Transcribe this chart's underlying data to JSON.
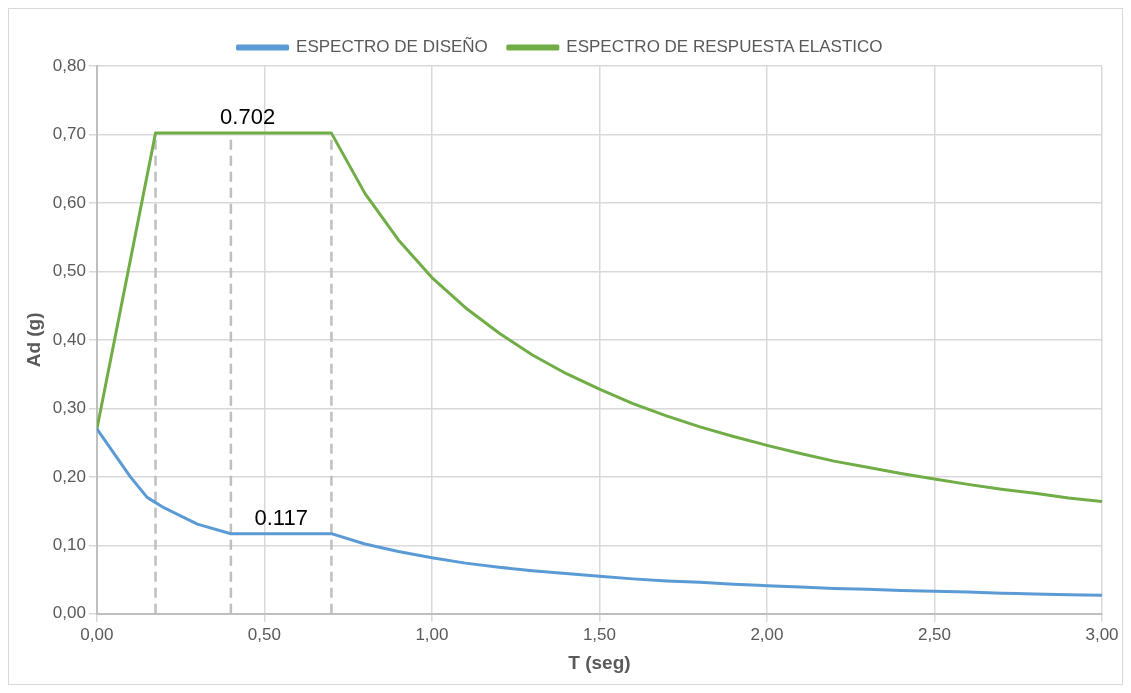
{
  "chart_data": {
    "type": "line",
    "xlabel": "T (seg)",
    "ylabel": "Ad (g)",
    "series": [
      {
        "name": "ESPECTRO DE DISEÑO",
        "color": "#5b9bd5",
        "x": [
          0,
          0.1,
          0.15,
          0.2,
          0.3,
          0.4,
          0.7,
          0.8,
          0.9,
          1.0,
          1.1,
          1.2,
          1.3,
          1.4,
          1.5,
          1.6,
          1.7,
          1.8,
          1.9,
          2.0,
          2.1,
          2.2,
          2.3,
          2.4,
          2.5,
          2.6,
          2.7,
          2.8,
          2.9,
          3.0
        ],
        "values": [
          0.27,
          0.2,
          0.17,
          0.155,
          0.131,
          0.117,
          0.117,
          0.102,
          0.091,
          0.082,
          0.074,
          0.068,
          0.063,
          0.059,
          0.055,
          0.051,
          0.048,
          0.046,
          0.043,
          0.041,
          0.039,
          0.037,
          0.036,
          0.034,
          0.033,
          0.032,
          0.03,
          0.029,
          0.028,
          0.027
        ]
      },
      {
        "name": "ESPECTRO DE RESPUESTA ELASTICO",
        "color": "#70ad47",
        "x": [
          0,
          0.175,
          0.7,
          0.8,
          0.9,
          1.0,
          1.1,
          1.2,
          1.3,
          1.4,
          1.5,
          1.6,
          1.7,
          1.8,
          1.9,
          2.0,
          2.1,
          2.2,
          2.3,
          2.4,
          2.5,
          2.6,
          2.7,
          2.8,
          2.9,
          3.0
        ],
        "values": [
          0.27,
          0.702,
          0.702,
          0.614,
          0.546,
          0.491,
          0.447,
          0.41,
          0.378,
          0.351,
          0.328,
          0.307,
          0.289,
          0.273,
          0.259,
          0.246,
          0.234,
          0.223,
          0.214,
          0.205,
          0.197,
          0.189,
          0.182,
          0.176,
          0.169,
          0.164
        ]
      }
    ],
    "annotations": [
      {
        "text": "0.702",
        "x": 0.45,
        "y": 0.702
      },
      {
        "text": "0.117",
        "x": 0.55,
        "y": 0.117
      }
    ],
    "ref_lines": [
      {
        "axis": "x",
        "value": 0.175,
        "color": "#bfbfbf",
        "line_style": "dashed"
      },
      {
        "axis": "x",
        "value": 0.4,
        "color": "#bfbfbf",
        "line_style": "dashed"
      },
      {
        "axis": "x",
        "value": 0.7,
        "color": "#bfbfbf",
        "line_style": "dashed"
      }
    ],
    "xlim": [
      0,
      3
    ],
    "xticks": [
      {
        "value": 0,
        "label": "0,00"
      },
      {
        "value": 0.5,
        "label": "0,50"
      },
      {
        "value": 1,
        "label": "1,00"
      },
      {
        "value": 1.5,
        "label": "1,50"
      },
      {
        "value": 2,
        "label": "2,00"
      },
      {
        "value": 2.5,
        "label": "2,50"
      },
      {
        "value": 3,
        "label": "3,00"
      }
    ],
    "ylim": [
      0,
      0.8
    ],
    "yticks": [
      {
        "value": 0,
        "label": "0,00"
      },
      {
        "value": 0.1,
        "label": "0,10"
      },
      {
        "value": 0.2,
        "label": "0,20"
      },
      {
        "value": 0.3,
        "label": "0,30"
      },
      {
        "value": 0.4,
        "label": "0,40"
      },
      {
        "value": 0.5,
        "label": "0,50"
      },
      {
        "value": 0.6,
        "label": "0,60"
      },
      {
        "value": 0.7,
        "label": "0,70"
      },
      {
        "value": 0.8,
        "label": "0,80"
      }
    ],
    "grid": true,
    "legend": "top",
    "marker": "none",
    "line_style": "solid"
  }
}
